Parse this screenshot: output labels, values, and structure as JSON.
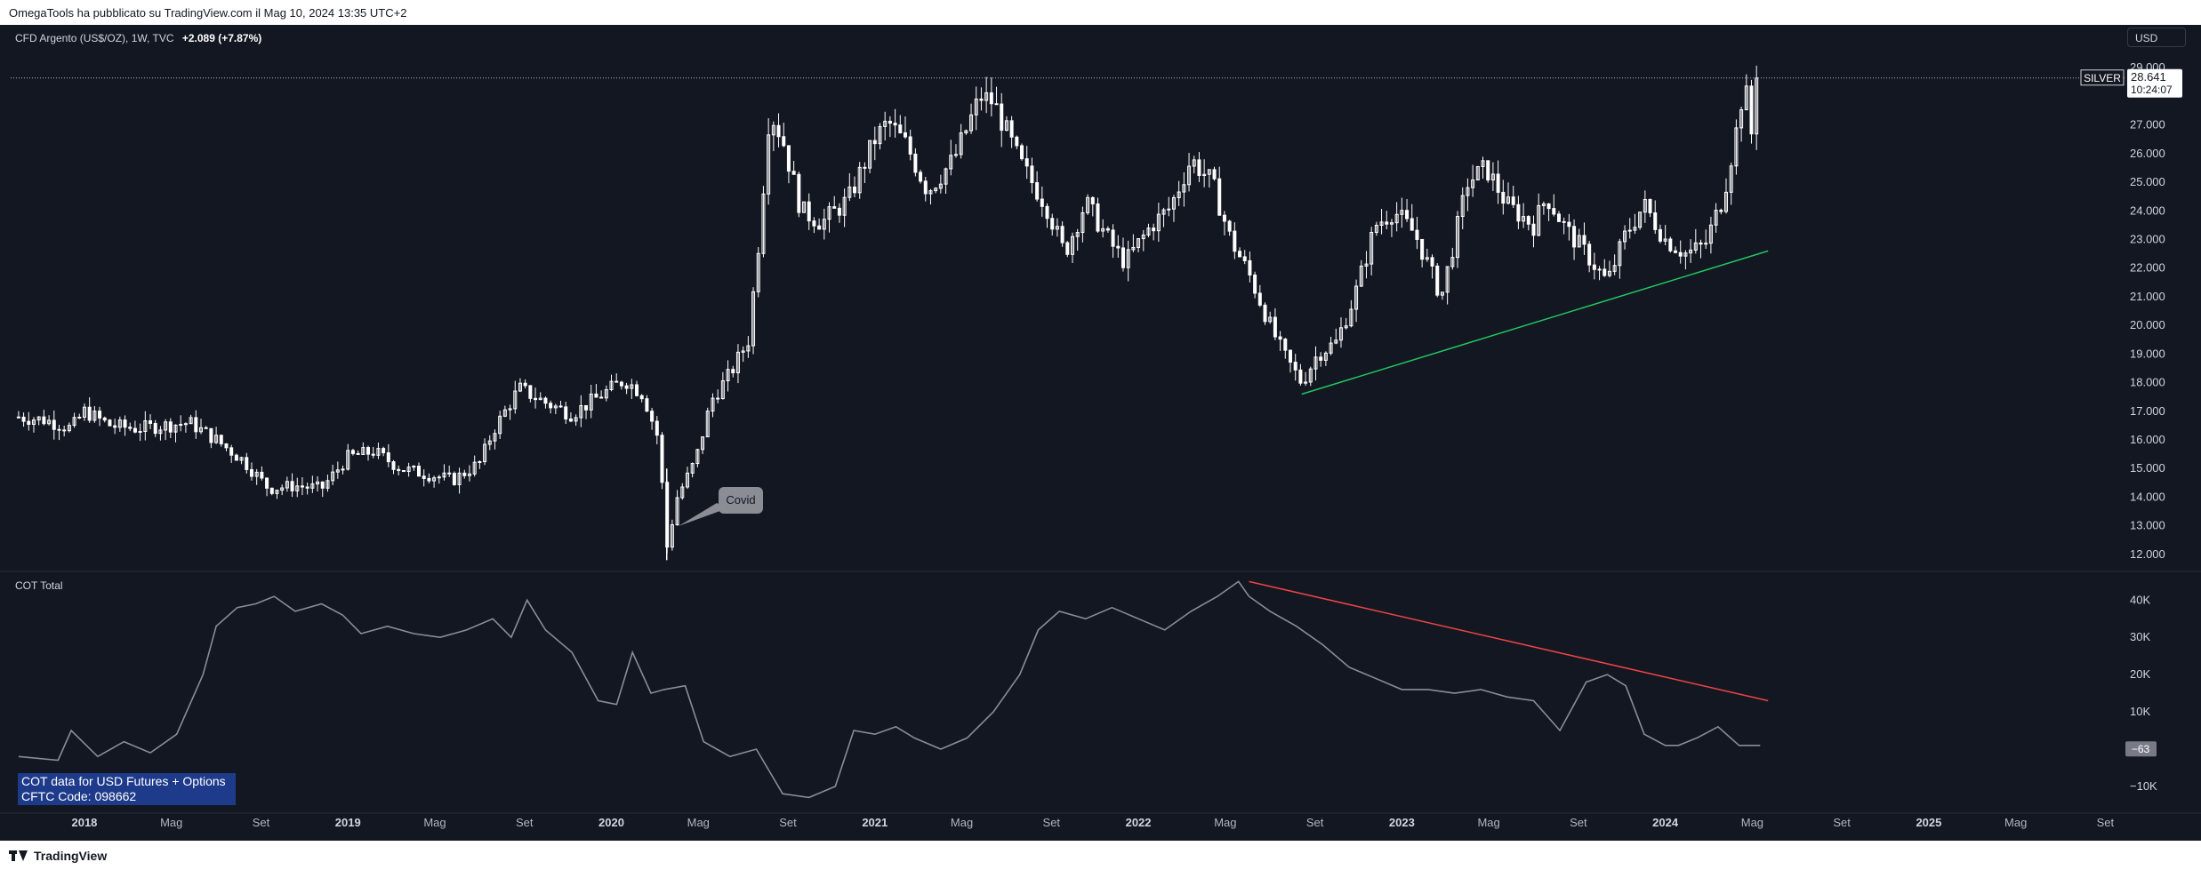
{
  "header": {
    "publisher_text": "OmegaTools ha pubblicato su TradingView.com il Mag 10, 2024 13:35 UTC+2"
  },
  "legend": {
    "symbol": "CFD Argento (US$/OZ), 1W, TVC",
    "change": "+2.089 (+7.87%)"
  },
  "currency_button": "USD",
  "price_label": {
    "symbol": "SILVER",
    "price": "28.641",
    "countdown": "10:24:07"
  },
  "cot_legend": "COT Total",
  "cot_current": "−63",
  "cot_info": {
    "line1": "COT data for USD Futures + Options",
    "line2": "CFTC Code: 098662"
  },
  "annotation": "Covid",
  "footer": {
    "brand": "TradingView"
  },
  "colors": {
    "background": "#131722",
    "candle": "#ffffff",
    "support_line": "#22c55e",
    "resistance_line": "#ef4444",
    "cot_line": "#8a8d94",
    "cot_box": "#1e3a8a"
  },
  "chart_data": [
    {
      "type": "candlestick",
      "title": "CFD Argento (US$/OZ), 1W, TVC",
      "ylim": [
        11.5,
        30.0
      ],
      "y_ticks": [
        12.0,
        13.0,
        14.0,
        15.0,
        16.0,
        17.0,
        18.0,
        19.0,
        20.0,
        21.0,
        22.0,
        23.0,
        24.0,
        25.0,
        26.0,
        27.0,
        29.0
      ],
      "y_tick_labels": [
        "12.000",
        "13.000",
        "14.000",
        "15.000",
        "16.000",
        "17.000",
        "18.000",
        "19.000",
        "20.000",
        "21.000",
        "22.000",
        "23.000",
        "24.000",
        "25.000",
        "26.000",
        "27.000",
        "29.000"
      ],
      "x_range": [
        "2017-09",
        "2025-11"
      ],
      "x_ticks": [
        {
          "label": "2018",
          "date": 2018.0,
          "bold": true
        },
        {
          "label": "Mag",
          "date": 2018.33,
          "bold": false
        },
        {
          "label": "Set",
          "date": 2018.67,
          "bold": false
        },
        {
          "label": "2019",
          "date": 2019.0,
          "bold": true
        },
        {
          "label": "Mag",
          "date": 2019.33,
          "bold": false
        },
        {
          "label": "Set",
          "date": 2019.67,
          "bold": false
        },
        {
          "label": "2020",
          "date": 2020.0,
          "bold": true
        },
        {
          "label": "Mag",
          "date": 2020.33,
          "bold": false
        },
        {
          "label": "Set",
          "date": 2020.67,
          "bold": false
        },
        {
          "label": "2021",
          "date": 2021.0,
          "bold": true
        },
        {
          "label": "Mag",
          "date": 2021.33,
          "bold": false
        },
        {
          "label": "Set",
          "date": 2021.67,
          "bold": false
        },
        {
          "label": "2022",
          "date": 2022.0,
          "bold": true
        },
        {
          "label": "Mag",
          "date": 2022.33,
          "bold": false
        },
        {
          "label": "Set",
          "date": 2022.67,
          "bold": false
        },
        {
          "label": "2023",
          "date": 2023.0,
          "bold": true
        },
        {
          "label": "Mag",
          "date": 2023.33,
          "bold": false
        },
        {
          "label": "Set",
          "date": 2023.67,
          "bold": false
        },
        {
          "label": "2024",
          "date": 2024.0,
          "bold": true
        },
        {
          "label": "Mag",
          "date": 2024.33,
          "bold": false
        },
        {
          "label": "Set",
          "date": 2024.67,
          "bold": false
        },
        {
          "label": "2025",
          "date": 2025.0,
          "bold": true
        },
        {
          "label": "Mag",
          "date": 2025.33,
          "bold": false
        },
        {
          "label": "Set",
          "date": 2025.67,
          "bold": false
        }
      ],
      "current_price": 28.641,
      "price_path": [
        [
          2017.75,
          16.8
        ],
        [
          2017.85,
          16.7
        ],
        [
          2017.95,
          16.4
        ],
        [
          2018.0,
          17.0
        ],
        [
          2018.1,
          16.5
        ],
        [
          2018.2,
          16.4
        ],
        [
          2018.3,
          16.5
        ],
        [
          2018.4,
          16.6
        ],
        [
          2018.5,
          16.0
        ],
        [
          2018.6,
          15.3
        ],
        [
          2018.7,
          14.3
        ],
        [
          2018.8,
          14.4
        ],
        [
          2018.9,
          14.3
        ],
        [
          2019.0,
          15.4
        ],
        [
          2019.1,
          15.6
        ],
        [
          2019.2,
          15.0
        ],
        [
          2019.3,
          14.8
        ],
        [
          2019.4,
          14.6
        ],
        [
          2019.5,
          15.2
        ],
        [
          2019.55,
          16.3
        ],
        [
          2019.65,
          17.8
        ],
        [
          2019.75,
          17.3
        ],
        [
          2019.85,
          16.9
        ],
        [
          2019.95,
          17.5
        ],
        [
          2020.05,
          18.1
        ],
        [
          2020.12,
          17.6
        ],
        [
          2020.18,
          16.0
        ],
        [
          2020.21,
          12.2
        ],
        [
          2020.25,
          14.0
        ],
        [
          2020.32,
          15.3
        ],
        [
          2020.38,
          17.4
        ],
        [
          2020.45,
          18.3
        ],
        [
          2020.52,
          19.5
        ],
        [
          2020.56,
          23.0
        ],
        [
          2020.6,
          27.5
        ],
        [
          2020.65,
          26.5
        ],
        [
          2020.72,
          24.0
        ],
        [
          2020.8,
          23.6
        ],
        [
          2020.9,
          24.4
        ],
        [
          2021.0,
          26.5
        ],
        [
          2021.05,
          27.1
        ],
        [
          2021.12,
          26.3
        ],
        [
          2021.2,
          24.7
        ],
        [
          2021.3,
          25.8
        ],
        [
          2021.4,
          28.0
        ],
        [
          2021.45,
          27.8
        ],
        [
          2021.55,
          25.7
        ],
        [
          2021.65,
          24.2
        ],
        [
          2021.72,
          22.5
        ],
        [
          2021.8,
          24.3
        ],
        [
          2021.9,
          22.8
        ],
        [
          2021.95,
          22.2
        ],
        [
          2022.05,
          23.5
        ],
        [
          2022.12,
          24.1
        ],
        [
          2022.2,
          25.8
        ],
        [
          2022.28,
          25.0
        ],
        [
          2022.35,
          23.0
        ],
        [
          2022.42,
          21.8
        ],
        [
          2022.5,
          20.0
        ],
        [
          2022.55,
          19.0
        ],
        [
          2022.62,
          18.0
        ],
        [
          2022.68,
          19.0
        ],
        [
          2022.75,
          19.4
        ],
        [
          2022.82,
          21.0
        ],
        [
          2022.9,
          23.5
        ],
        [
          2022.97,
          24.0
        ],
        [
          2023.05,
          23.2
        ],
        [
          2023.15,
          21.0
        ],
        [
          2023.25,
          25.0
        ],
        [
          2023.32,
          25.5
        ],
        [
          2023.4,
          24.2
        ],
        [
          2023.5,
          23.5
        ],
        [
          2023.55,
          24.5
        ],
        [
          2023.62,
          23.4
        ],
        [
          2023.7,
          22.5
        ],
        [
          2023.78,
          21.5
        ],
        [
          2023.85,
          23.2
        ],
        [
          2023.92,
          24.2
        ],
        [
          2024.0,
          23.0
        ],
        [
          2024.08,
          22.5
        ],
        [
          2024.15,
          22.8
        ],
        [
          2024.22,
          24.5
        ],
        [
          2024.27,
          26.8
        ],
        [
          2024.3,
          28.5
        ],
        [
          2024.33,
          26.5
        ],
        [
          2024.36,
          28.6
        ]
      ]
    },
    {
      "type": "line",
      "title": "COT Total",
      "ylim": [
        -16000,
        47000
      ],
      "y_ticks": [
        -10000,
        10000,
        20000,
        30000,
        40000
      ],
      "y_tick_labels": [
        "−10K",
        "10K",
        "20K",
        "30K",
        "40K"
      ],
      "current_value": -63,
      "x": [
        2017.75,
        2017.9,
        2017.95,
        2018.05,
        2018.15,
        2018.25,
        2018.35,
        2018.45,
        2018.5,
        2018.58,
        2018.65,
        2018.72,
        2018.8,
        2018.9,
        2018.98,
        2019.05,
        2019.15,
        2019.25,
        2019.35,
        2019.45,
        2019.55,
        2019.62,
        2019.68,
        2019.75,
        2019.85,
        2019.95,
        2020.02,
        2020.08,
        2020.15,
        2020.2,
        2020.28,
        2020.35,
        2020.4,
        2020.45,
        2020.55,
        2020.65,
        2020.75,
        2020.85,
        2020.92,
        2021.0,
        2021.08,
        2021.15,
        2021.25,
        2021.35,
        2021.45,
        2021.55,
        2021.62,
        2021.7,
        2021.8,
        2021.9,
        2022.0,
        2022.1,
        2022.2,
        2022.3,
        2022.38,
        2022.42,
        2022.5,
        2022.6,
        2022.7,
        2022.8,
        2022.9,
        2023.0,
        2023.1,
        2023.2,
        2023.3,
        2023.4,
        2023.5,
        2023.6,
        2023.7,
        2023.78,
        2023.85,
        2023.92,
        2024.0,
        2024.05,
        2024.12,
        2024.2,
        2024.28,
        2024.36
      ],
      "values": [
        -2000,
        -3000,
        5000,
        -2000,
        2000,
        -1000,
        4000,
        20000,
        33000,
        38000,
        39000,
        41000,
        37000,
        39000,
        36000,
        31000,
        33000,
        31000,
        30000,
        32000,
        35000,
        30000,
        40000,
        32000,
        26000,
        13000,
        12000,
        26000,
        15000,
        16000,
        17000,
        2000,
        0,
        -2000,
        0,
        -12000,
        -13000,
        -10000,
        5000,
        4000,
        6000,
        3000,
        0,
        3000,
        10000,
        20000,
        32000,
        37000,
        35000,
        38000,
        35000,
        32000,
        37000,
        41000,
        45000,
        41000,
        37000,
        33000,
        28000,
        22000,
        19000,
        16000,
        16000,
        15000,
        16000,
        14000,
        13000,
        5000,
        18000,
        20000,
        17000,
        4000,
        1000,
        1000,
        3000,
        6000,
        1000,
        1000
      ]
    }
  ],
  "trendlines": [
    {
      "name": "support",
      "from": [
        2022.62,
        17.6
      ],
      "to": [
        2024.39,
        22.6
      ]
    },
    {
      "name": "resistance",
      "from": [
        2022.42,
        45000
      ],
      "to": [
        2024.39,
        13000
      ]
    }
  ]
}
